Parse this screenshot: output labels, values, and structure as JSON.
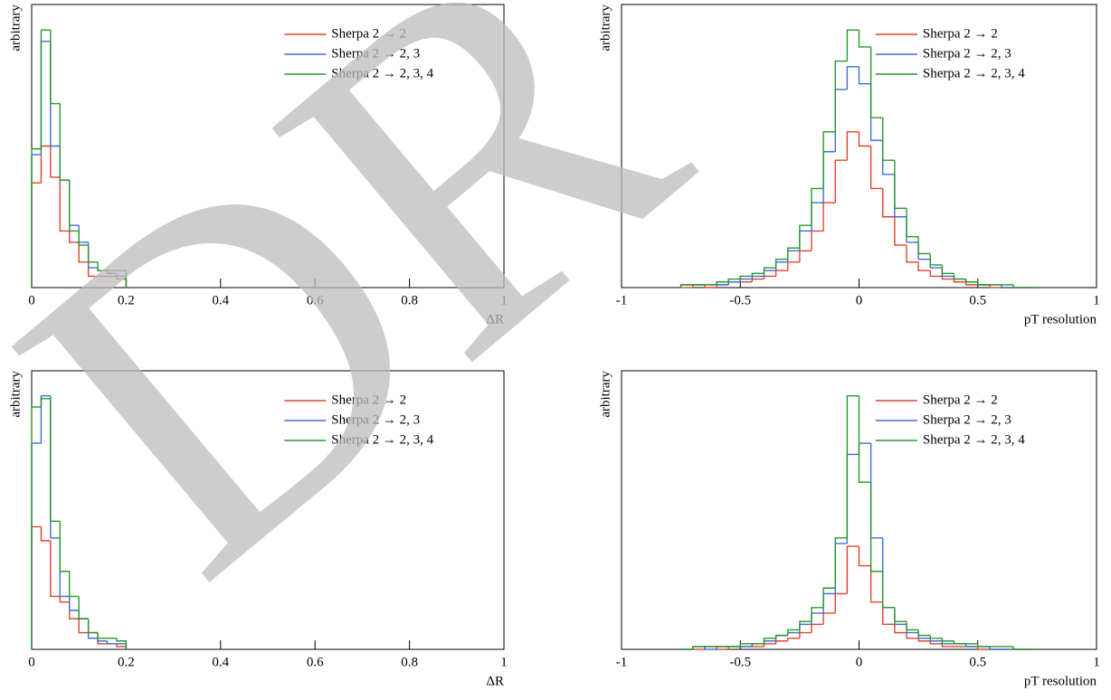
{
  "chart_data": [
    {
      "type": "histogram",
      "xlabel": "ΔR",
      "ylabel": "arbitrary",
      "xlim": [
        0,
        1
      ],
      "ylim": [
        0,
        100
      ],
      "xticks": [
        0,
        0.2,
        0.4,
        0.6,
        0.8,
        1
      ],
      "bins": [
        0,
        0.02,
        0.04,
        0.06,
        0.08,
        0.1,
        0.12,
        0.14,
        0.16,
        0.18,
        0.2
      ],
      "series": [
        {
          "name": "Sherpa 2 → 2",
          "color": "#e0452b",
          "values": [
            37,
            50,
            39,
            20,
            16,
            9,
            4,
            4,
            4,
            3
          ]
        },
        {
          "name": "Sherpa 2 → 2, 3",
          "color": "#3c6fd6",
          "values": [
            47,
            87,
            50,
            38,
            22,
            16,
            7,
            6,
            5,
            4
          ]
        },
        {
          "name": "Sherpa 2 → 2, 3, 4",
          "color": "#2a982a",
          "values": [
            49,
            91,
            65,
            38,
            20,
            15,
            9,
            6,
            6,
            6
          ]
        }
      ]
    },
    {
      "type": "histogram",
      "xlabel": "pT resolution",
      "ylabel": "arbitrary",
      "xlim": [
        -1,
        1
      ],
      "ylim": [
        0,
        100
      ],
      "xticks": [
        -1,
        -0.5,
        0,
        0.5,
        1
      ],
      "bins": [
        -0.75,
        -0.7,
        -0.65,
        -0.6,
        -0.55,
        -0.5,
        -0.45,
        -0.4,
        -0.35,
        -0.3,
        -0.25,
        -0.2,
        -0.15,
        -0.1,
        -0.05,
        0,
        0.05,
        0.1,
        0.15,
        0.2,
        0.25,
        0.3,
        0.35,
        0.4,
        0.45,
        0.5,
        0.55,
        0.6,
        0.65,
        0.7,
        0.75
      ],
      "series": [
        {
          "name": "Sherpa 2 → 2",
          "color": "#e0452b",
          "values": [
            0,
            1,
            0,
            1,
            2,
            2,
            3,
            4,
            6,
            9,
            13,
            20,
            30,
            45,
            55,
            50,
            35,
            25,
            15,
            9,
            6,
            4,
            3,
            2,
            1,
            1,
            0,
            0,
            0,
            0
          ]
        },
        {
          "name": "Sherpa 2 → 2, 3",
          "color": "#3c6fd6",
          "values": [
            1,
            1,
            1,
            1,
            2,
            3,
            4,
            6,
            9,
            13,
            20,
            30,
            48,
            70,
            78,
            72,
            52,
            40,
            25,
            16,
            10,
            7,
            4,
            3,
            2,
            1,
            1,
            0,
            0,
            0
          ]
        },
        {
          "name": "Sherpa 2 → 2, 3, 4",
          "color": "#2a982a",
          "values": [
            1,
            1,
            1,
            2,
            3,
            4,
            5,
            7,
            10,
            14,
            22,
            35,
            55,
            80,
            91,
            85,
            60,
            45,
            28,
            18,
            12,
            8,
            5,
            3,
            2,
            1,
            1,
            1,
            0,
            0
          ]
        }
      ]
    },
    {
      "type": "histogram",
      "xlabel": "ΔR",
      "ylabel": "arbitrary",
      "xlim": [
        0,
        1
      ],
      "ylim": [
        0,
        100
      ],
      "xticks": [
        0,
        0.2,
        0.4,
        0.6,
        0.8,
        1
      ],
      "bins": [
        0,
        0.02,
        0.04,
        0.06,
        0.08,
        0.1,
        0.12,
        0.14,
        0.16,
        0.18,
        0.2
      ],
      "series": [
        {
          "name": "Sherpa 2 → 2",
          "color": "#e0452b",
          "values": [
            44,
            39,
            19,
            17,
            11,
            6,
            6,
            2,
            2,
            1
          ]
        },
        {
          "name": "Sherpa 2 → 2, 3",
          "color": "#3c6fd6",
          "values": [
            74,
            91,
            40,
            19,
            14,
            11,
            4,
            3,
            2,
            2
          ]
        },
        {
          "name": "Sherpa 2 → 2, 3, 4",
          "color": "#2a982a",
          "values": [
            87,
            90,
            46,
            28,
            19,
            11,
            6,
            4,
            4,
            3
          ]
        }
      ]
    },
    {
      "type": "histogram",
      "xlabel": "pT resolution",
      "ylabel": "arbitrary",
      "xlim": [
        -1,
        1
      ],
      "ylim": [
        0,
        100
      ],
      "xticks": [
        -1,
        -0.5,
        0,
        0.5,
        1
      ],
      "bins": [
        -0.75,
        -0.7,
        -0.65,
        -0.6,
        -0.55,
        -0.5,
        -0.45,
        -0.4,
        -0.35,
        -0.3,
        -0.25,
        -0.2,
        -0.15,
        -0.1,
        -0.05,
        0,
        0.05,
        0.1,
        0.15,
        0.2,
        0.25,
        0.3,
        0.35,
        0.4,
        0.45,
        0.5,
        0.55,
        0.6,
        0.65,
        0.7,
        0.75
      ],
      "series": [
        {
          "name": "Sherpa 2 → 2",
          "color": "#e0452b",
          "values": [
            0,
            0,
            1,
            0,
            1,
            1,
            1,
            2,
            3,
            4,
            6,
            9,
            13,
            20,
            37,
            30,
            17,
            9,
            6,
            4,
            3,
            2,
            1,
            1,
            1,
            0,
            0,
            0,
            0,
            0
          ]
        },
        {
          "name": "Sherpa 2 → 2, 3",
          "color": "#3c6fd6",
          "values": [
            0,
            1,
            0,
            1,
            1,
            1,
            2,
            3,
            5,
            6,
            9,
            13,
            20,
            38,
            70,
            74,
            40,
            15,
            9,
            6,
            4,
            3,
            2,
            2,
            1,
            1,
            0,
            0,
            0,
            0
          ]
        },
        {
          "name": "Sherpa 2 → 2, 3, 4",
          "color": "#2a982a",
          "values": [
            0,
            1,
            1,
            1,
            1,
            2,
            2,
            4,
            5,
            7,
            10,
            15,
            22,
            40,
            91,
            60,
            28,
            15,
            10,
            7,
            5,
            4,
            3,
            2,
            2,
            1,
            1,
            1,
            0,
            0
          ]
        }
      ]
    }
  ],
  "watermark": "DR"
}
